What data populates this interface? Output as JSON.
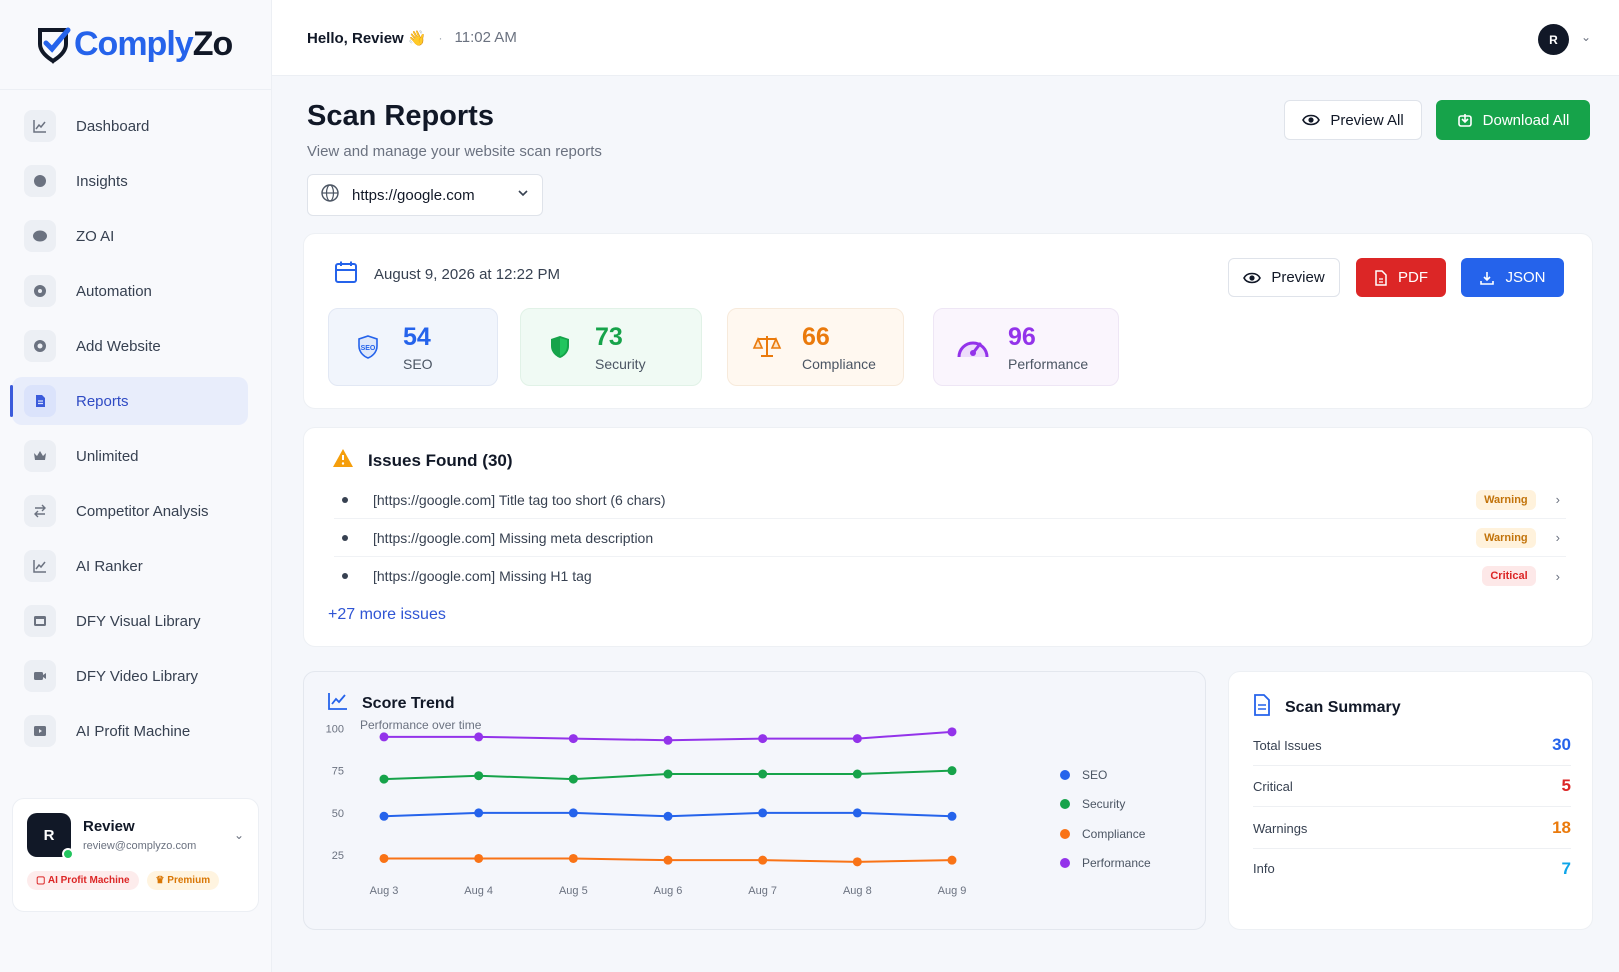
{
  "brand": {
    "name_part1": "Comply",
    "name_part2": "Zo",
    "accent": "#2563eb"
  },
  "header": {
    "greeting": "Hello, Review 👋",
    "time": "11:02 AM",
    "avatar_initial": "R"
  },
  "sidebar": {
    "items": [
      {
        "label": "Dashboard",
        "icon": "chart-line-icon"
      },
      {
        "label": "Insights",
        "icon": "brain-icon"
      },
      {
        "label": "ZO AI",
        "icon": "brain-icon"
      },
      {
        "label": "Automation",
        "icon": "gear-icon"
      },
      {
        "label": "Add Website",
        "icon": "plus-circle-icon"
      },
      {
        "label": "Reports",
        "icon": "document-icon",
        "active": true
      },
      {
        "label": "Unlimited",
        "icon": "crown-icon"
      },
      {
        "label": "Competitor Analysis",
        "icon": "swap-icon"
      },
      {
        "label": "AI Ranker",
        "icon": "chart-line-icon"
      },
      {
        "label": "DFY Visual Library",
        "icon": "image-icon"
      },
      {
        "label": "DFY Video Library",
        "icon": "video-icon"
      },
      {
        "label": "AI Profit Machine",
        "icon": "film-icon"
      }
    ],
    "user": {
      "initial": "R",
      "name": "Review",
      "email": "review@complyzo.com",
      "badge1": "AI Profit Machine",
      "badge2": "Premium"
    }
  },
  "page": {
    "title": "Scan Reports",
    "subtitle": "View and manage your website scan reports",
    "preview_all": "Preview All",
    "download_all": "Download All",
    "url_select": "https://google.com"
  },
  "report": {
    "date": "August 9, 2026 at 12:22 PM",
    "preview": "Preview",
    "pdf": "PDF",
    "json": "JSON",
    "scores": [
      {
        "value": "54",
        "label": "SEO"
      },
      {
        "value": "73",
        "label": "Security"
      },
      {
        "value": "66",
        "label": "Compliance"
      },
      {
        "value": "96",
        "label": "Performance"
      }
    ]
  },
  "issues": {
    "title": "Issues Found (30)",
    "items": [
      {
        "text": "[https://google.com] Title tag too short (6 chars)",
        "severity": "Warning"
      },
      {
        "text": "[https://google.com] Missing meta description",
        "severity": "Warning"
      },
      {
        "text": "[https://google.com] Missing H1 tag",
        "severity": "Critical"
      }
    ],
    "more": "+27 more issues"
  },
  "trend": {
    "title": "Score Trend",
    "subtitle": "Performance over time"
  },
  "chart_data": {
    "type": "line",
    "categories": [
      "Aug 3",
      "Aug 4",
      "Aug 5",
      "Aug 6",
      "Aug 7",
      "Aug 8",
      "Aug 9"
    ],
    "yticks": [
      25,
      50,
      75,
      100
    ],
    "ylim": [
      15,
      105
    ],
    "legend_position": "right",
    "series": [
      {
        "name": "SEO",
        "color": "#2563eb",
        "values": [
          48,
          50,
          50,
          48,
          50,
          50,
          48
        ]
      },
      {
        "name": "Security",
        "color": "#16a34a",
        "values": [
          70,
          72,
          70,
          73,
          73,
          73,
          75
        ]
      },
      {
        "name": "Compliance",
        "color": "#f97316",
        "values": [
          23,
          23,
          23,
          22,
          22,
          21,
          22
        ]
      },
      {
        "name": "Performance",
        "color": "#9333ea",
        "values": [
          95,
          95,
          94,
          93,
          94,
          94,
          98
        ]
      }
    ]
  },
  "summary": {
    "title": "Scan Summary",
    "rows": [
      {
        "label": "Total Issues",
        "value": "30",
        "color": "#2563eb"
      },
      {
        "label": "Critical",
        "value": "5",
        "color": "#dc2626"
      },
      {
        "label": "Warnings",
        "value": "18",
        "color": "#ea7a0c"
      },
      {
        "label": "Info",
        "value": "7",
        "color": "#0ea5e9"
      }
    ]
  }
}
